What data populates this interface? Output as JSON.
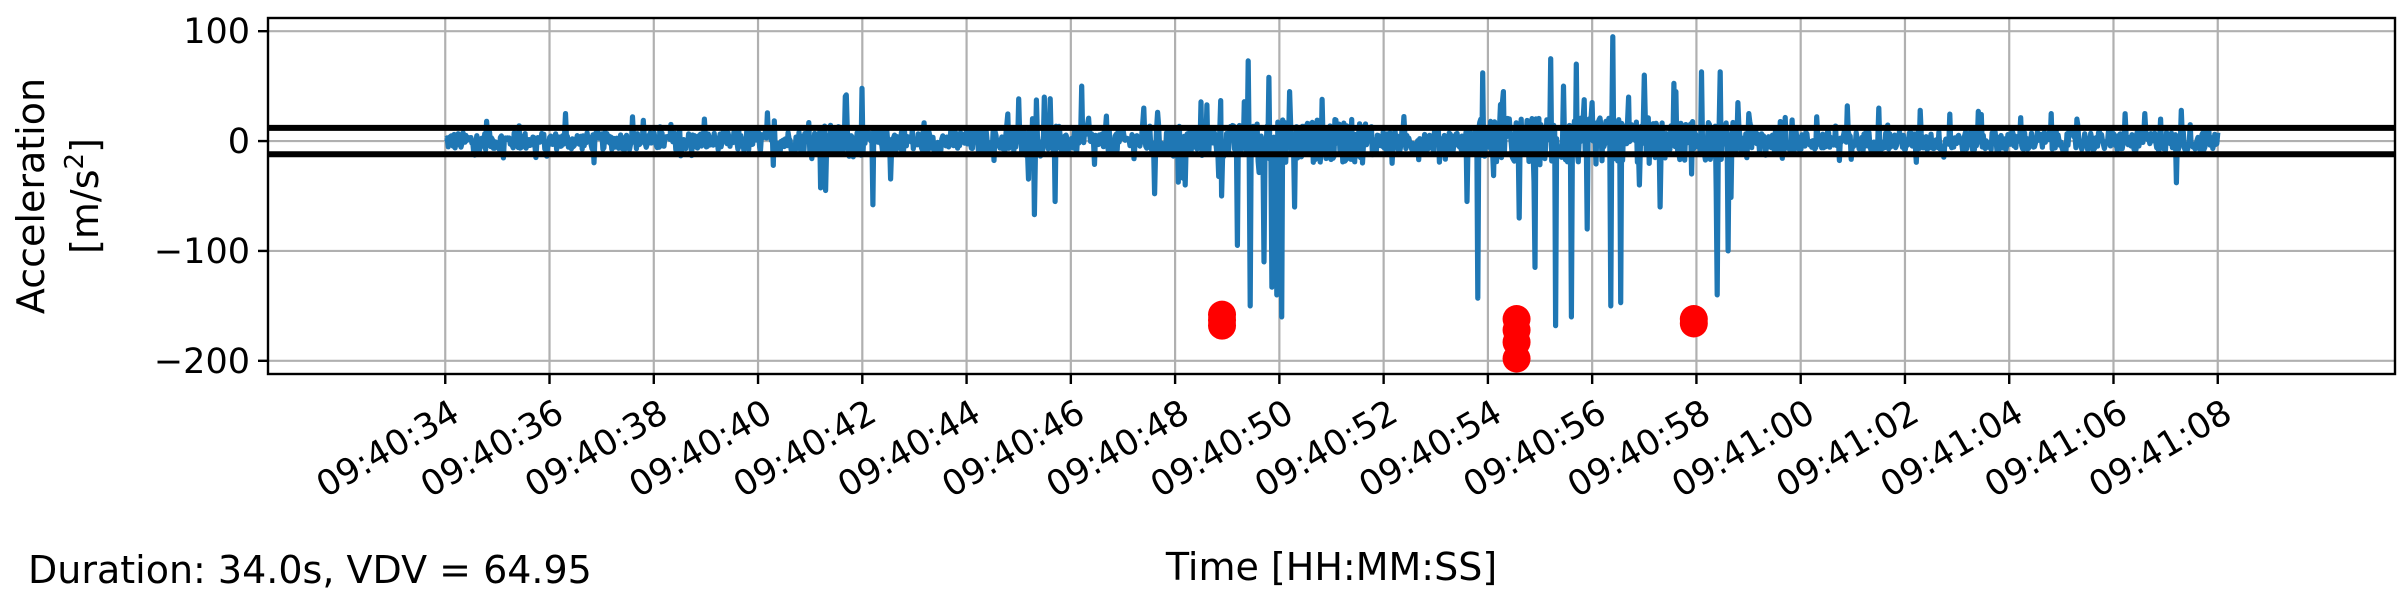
{
  "chart_data": {
    "type": "line",
    "xlabel": "Time [HH:MM:SS]",
    "ylabel_line1": "Acceleration",
    "ylabel_unit_prefix": "[m/s",
    "ylabel_unit_exp": "2",
    "ylabel_unit_suffix": "]",
    "x_range_seconds": [
      -3.4,
      37.4
    ],
    "ylim": [
      -212,
      112
    ],
    "yticks": [
      100,
      0,
      -100,
      -200
    ],
    "ytick_labels": [
      "100",
      "0",
      "−100",
      "−200"
    ],
    "xtick_labels": [
      "09:40:34",
      "09:40:36",
      "09:40:38",
      "09:40:40",
      "09:40:42",
      "09:40:44",
      "09:40:46",
      "09:40:48",
      "09:40:50",
      "09:40:52",
      "09:40:54",
      "09:40:56",
      "09:40:58",
      "09:41:00",
      "09:41:02",
      "09:41:04",
      "09:41:06",
      "09:41:08"
    ],
    "xtick_seconds": [
      0,
      2,
      4,
      6,
      8,
      10,
      12,
      14,
      16,
      18,
      20,
      22,
      24,
      26,
      28,
      30,
      32,
      34
    ],
    "grid": true,
    "threshold_lines": [
      12,
      -12
    ],
    "series": [
      {
        "color": "#1f77b4",
        "segments": [
          {
            "start": 0.0,
            "end": 5.5,
            "amp": 8,
            "spike": 20
          },
          {
            "start": 5.5,
            "end": 7.2,
            "amp": 10,
            "spike": 30
          },
          {
            "start": 7.2,
            "end": 8.0,
            "amp": 15,
            "spike": 45
          },
          {
            "start": 8.0,
            "end": 9.0,
            "amp": 12,
            "spike": 35
          },
          {
            "start": 9.0,
            "end": 10.8,
            "amp": 10,
            "spike": 25
          },
          {
            "start": 10.8,
            "end": 12.0,
            "amp": 14,
            "spike": 40
          },
          {
            "start": 12.0,
            "end": 13.5,
            "amp": 10,
            "spike": 25
          },
          {
            "start": 13.5,
            "end": 15.5,
            "amp": 15,
            "spike": 40
          },
          {
            "start": 15.5,
            "end": 17.8,
            "amp": 20,
            "spike": 55
          },
          {
            "start": 17.8,
            "end": 19.8,
            "amp": 10,
            "spike": 25
          },
          {
            "start": 19.8,
            "end": 23.2,
            "amp": 22,
            "spike": 60
          },
          {
            "start": 23.2,
            "end": 25.4,
            "amp": 18,
            "spike": 55
          },
          {
            "start": 25.4,
            "end": 34.0,
            "amp": 9,
            "spike": 25
          }
        ],
        "extremes": [
          {
            "t": 8.2,
            "v": -58
          },
          {
            "t": 7.3,
            "v": -45
          },
          {
            "t": 7.7,
            "v": 42
          },
          {
            "t": 8.0,
            "v": 48
          },
          {
            "t": 11.3,
            "v": -67
          },
          {
            "t": 11.7,
            "v": -55
          },
          {
            "t": 11.5,
            "v": 40
          },
          {
            "t": 12.2,
            "v": 50
          },
          {
            "t": 13.6,
            "v": -48
          },
          {
            "t": 13.4,
            "v": 30
          },
          {
            "t": 14.2,
            "v": -40
          },
          {
            "t": 14.6,
            "v": 33
          },
          {
            "t": 15.4,
            "v": 73
          },
          {
            "t": 14.9,
            "v": -50
          },
          {
            "t": 15.2,
            "v": -95
          },
          {
            "t": 15.45,
            "v": -150
          },
          {
            "t": 15.7,
            "v": -110
          },
          {
            "t": 15.85,
            "v": -133
          },
          {
            "t": 15.95,
            "v": -140
          },
          {
            "t": 16.05,
            "v": -160
          },
          {
            "t": 16.2,
            "v": 45
          },
          {
            "t": 16.3,
            "v": -60
          },
          {
            "t": 15.8,
            "v": 58
          },
          {
            "t": 19.8,
            "v": -143
          },
          {
            "t": 19.6,
            "v": -55
          },
          {
            "t": 19.9,
            "v": 62
          },
          {
            "t": 20.3,
            "v": 45
          },
          {
            "t": 20.6,
            "v": -70
          },
          {
            "t": 20.9,
            "v": -115
          },
          {
            "t": 21.2,
            "v": 75
          },
          {
            "t": 21.3,
            "v": -168
          },
          {
            "t": 21.45,
            "v": 50
          },
          {
            "t": 21.6,
            "v": -160
          },
          {
            "t": 21.7,
            "v": 70
          },
          {
            "t": 21.9,
            "v": -80
          },
          {
            "t": 22.0,
            "v": 35
          },
          {
            "t": 22.35,
            "v": -150
          },
          {
            "t": 22.4,
            "v": 95
          },
          {
            "t": 22.55,
            "v": -147
          },
          {
            "t": 22.7,
            "v": 40
          },
          {
            "t": 22.9,
            "v": -40
          },
          {
            "t": 23.0,
            "v": 60
          },
          {
            "t": 23.3,
            "v": -60
          },
          {
            "t": 23.6,
            "v": 45
          },
          {
            "t": 23.9,
            "v": -30
          },
          {
            "t": 24.1,
            "v": 63
          },
          {
            "t": 24.45,
            "v": 63
          },
          {
            "t": 24.4,
            "v": -140
          },
          {
            "t": 24.6,
            "v": -100
          },
          {
            "t": 24.8,
            "v": 35
          },
          {
            "t": 25.0,
            "v": 25
          },
          {
            "t": 26.3,
            "v": 22
          },
          {
            "t": 26.9,
            "v": 32
          },
          {
            "t": 27.5,
            "v": 30
          },
          {
            "t": 28.3,
            "v": 28
          },
          {
            "t": 29.4,
            "v": 27
          },
          {
            "t": 30.8,
            "v": 25
          },
          {
            "t": 31.3,
            "v": 20
          },
          {
            "t": 32.6,
            "v": 25
          },
          {
            "t": 32.9,
            "v": 20
          },
          {
            "t": 33.2,
            "v": -38
          },
          {
            "t": 33.3,
            "v": 28
          },
          {
            "t": 2.3,
            "v": 25
          },
          {
            "t": 3.6,
            "v": 22
          },
          {
            "t": 0.8,
            "v": 18
          }
        ]
      }
    ],
    "markers": {
      "color": "#ff0000",
      "points": [
        {
          "t": 14.9,
          "v": -158
        },
        {
          "t": 14.9,
          "v": -163
        },
        {
          "t": 14.9,
          "v": -168
        },
        {
          "t": 20.55,
          "v": -162
        },
        {
          "t": 20.55,
          "v": -172
        },
        {
          "t": 20.55,
          "v": -183
        },
        {
          "t": 20.55,
          "v": -198
        },
        {
          "t": 23.95,
          "v": -162
        },
        {
          "t": 23.95,
          "v": -166
        }
      ]
    }
  },
  "footer": {
    "summary": "Duration: 34.0s, VDV = 64.95"
  },
  "colors": {
    "line": "#1f77b4",
    "marker": "#ff0000",
    "grid": "#b0b0b0",
    "threshold": "#000000"
  }
}
